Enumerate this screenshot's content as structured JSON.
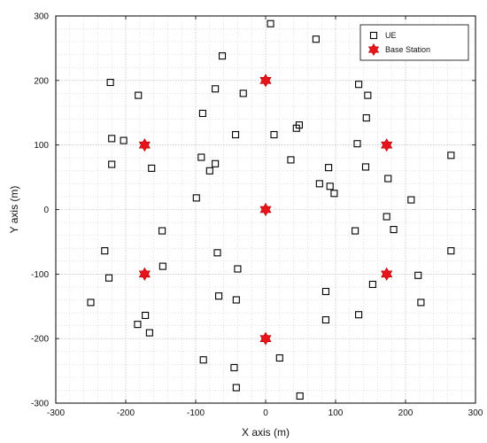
{
  "chart_data": {
    "type": "scatter",
    "xlabel": "X axis (m)",
    "ylabel": "Y axis (m)",
    "xlim": [
      -300,
      300
    ],
    "ylim": [
      -300,
      300
    ],
    "xticks": [
      -300,
      -200,
      -100,
      0,
      100,
      200,
      300
    ],
    "yticks": [
      -300,
      -200,
      -100,
      0,
      100,
      200,
      300
    ],
    "grid": true,
    "legend_position": "top-right",
    "series": [
      {
        "name": "UE",
        "marker": "square",
        "color": "#000000",
        "points": [
          [
            7,
            288
          ],
          [
            72,
            264
          ],
          [
            -62,
            238
          ],
          [
            -222,
            197
          ],
          [
            -182,
            177
          ],
          [
            -72,
            187
          ],
          [
            -32,
            180
          ],
          [
            133,
            194
          ],
          [
            146,
            177
          ],
          [
            -90,
            149
          ],
          [
            144,
            142
          ],
          [
            44,
            126
          ],
          [
            48,
            131
          ],
          [
            -43,
            116
          ],
          [
            12,
            116
          ],
          [
            -220,
            110
          ],
          [
            -203,
            107
          ],
          [
            131,
            102
          ],
          [
            -92,
            81
          ],
          [
            -72,
            71
          ],
          [
            -80,
            60
          ],
          [
            -220,
            70
          ],
          [
            -163,
            64
          ],
          [
            36,
            77
          ],
          [
            90,
            65
          ],
          [
            143,
            66
          ],
          [
            175,
            48
          ],
          [
            265,
            84
          ],
          [
            77,
            40
          ],
          [
            92,
            36
          ],
          [
            98,
            25
          ],
          [
            -99,
            18
          ],
          [
            208,
            15
          ],
          [
            -148,
            -33
          ],
          [
            128,
            -33
          ],
          [
            173,
            -11
          ],
          [
            183,
            -31
          ],
          [
            -230,
            -64
          ],
          [
            -69,
            -67
          ],
          [
            265,
            -64
          ],
          [
            -147,
            -88
          ],
          [
            -40,
            -92
          ],
          [
            -224,
            -106
          ],
          [
            218,
            -102
          ],
          [
            153,
            -116
          ],
          [
            -67,
            -134
          ],
          [
            -42,
            -140
          ],
          [
            86,
            -127
          ],
          [
            222,
            -144
          ],
          [
            -250,
            -144
          ],
          [
            -172,
            -164
          ],
          [
            -183,
            -178
          ],
          [
            -166,
            -191
          ],
          [
            86,
            -171
          ],
          [
            133,
            -163
          ],
          [
            -89,
            -233
          ],
          [
            -45,
            -245
          ],
          [
            20,
            -230
          ],
          [
            -42,
            -276
          ],
          [
            49,
            -289
          ]
        ]
      },
      {
        "name": "Base Station",
        "marker": "hexagram",
        "color": "#e8141c",
        "points": [
          [
            0,
            200
          ],
          [
            -173,
            100
          ],
          [
            173,
            100
          ],
          [
            0,
            0
          ],
          [
            -173,
            -100
          ],
          [
            173,
            -100
          ],
          [
            0,
            -200
          ]
        ]
      }
    ]
  }
}
